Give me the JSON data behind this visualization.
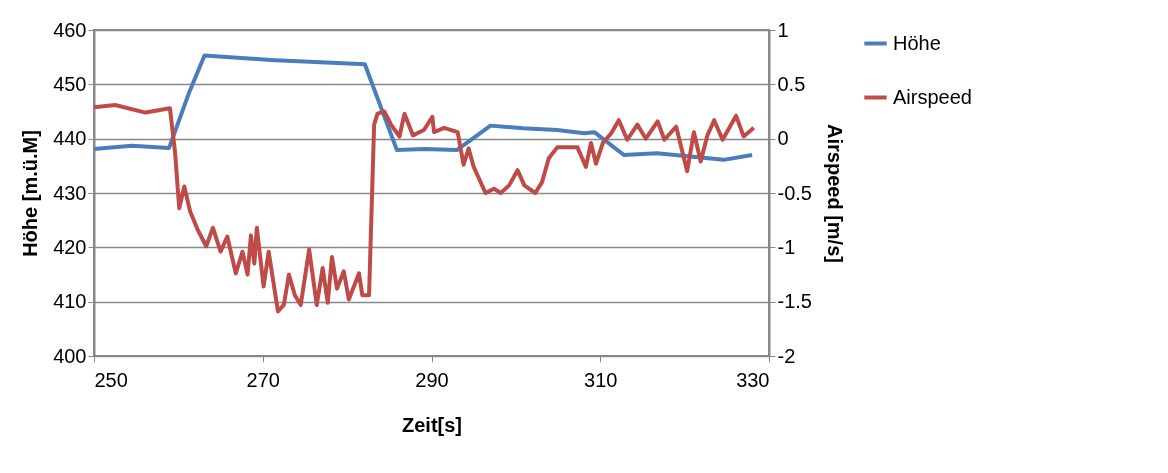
{
  "chart_data": {
    "type": "line",
    "xlabel": "Zeit[s]",
    "ylabel": "Höhe [m.ü.M]",
    "y2label": "Airspeed [m/s]",
    "xlim": [
      250,
      330
    ],
    "xticks": [
      250,
      270,
      290,
      310,
      330
    ],
    "ylim": [
      400,
      460
    ],
    "yticks": [
      400,
      410,
      420,
      430,
      440,
      450,
      460
    ],
    "y2lim": [
      -2,
      1
    ],
    "y2ticks": [
      -2,
      -1.5,
      -1,
      -0.5,
      0,
      0.5,
      1
    ],
    "grid": "y",
    "legend": "right",
    "line_style": "solid",
    "marker": "none",
    "series": [
      {
        "name": "Höhe",
        "color": "#4a7ebb",
        "x": [
          250,
          254.5,
          258.9,
          261.3,
          263.1,
          270.9,
          276.2,
          282.1,
          285.9,
          289.1,
          293.0,
          297.0,
          300.9,
          304.9,
          308.1,
          309.3,
          312.8,
          316.7,
          320.7,
          324.6,
          328.0
        ],
        "values": [
          438.1,
          438.7,
          438.3,
          448.6,
          455.3,
          454.5,
          454.1,
          453.7,
          437.9,
          438.1,
          437.9,
          442.4,
          441.9,
          441.6,
          441.0,
          441.2,
          437.0,
          437.3,
          436.7,
          436.1,
          437.0
        ]
      },
      {
        "name": "Airspeed",
        "color": "#be4b48",
        "axis": "y2",
        "x": [
          250,
          252.5,
          256.1,
          259.0,
          259.6,
          260.1,
          260.7,
          261.4,
          262.3,
          263.3,
          264.1,
          265.0,
          265.8,
          266.8,
          267.6,
          268.2,
          268.6,
          269.0,
          269.3,
          270.1,
          270.7,
          271.8,
          272.5,
          273.1,
          273.8,
          274.5,
          275.5,
          276.4,
          277.1,
          277.7,
          278.2,
          278.8,
          279.6,
          280.2,
          281.4,
          281.8,
          282.6,
          283.2,
          283.6,
          284.4,
          285.2,
          286.2,
          286.8,
          287.8,
          289.1,
          290.1,
          290.3,
          291.5,
          293.1,
          293.8,
          294.4,
          295.0,
          296.4,
          297.4,
          298.2,
          299.2,
          300.2,
          301.0,
          302.3,
          303.1,
          303.9,
          304.9,
          307.3,
          308.3,
          308.9,
          309.5,
          310.3,
          311.3,
          312.2,
          313.2,
          314.4,
          315.4,
          316.8,
          317.6,
          319.0,
          320.3,
          321.1,
          321.9,
          322.7,
          323.5,
          324.5,
          326.1,
          327.0,
          328.2
        ],
        "values": [
          0.29,
          0.31,
          0.24,
          0.28,
          -0.12,
          -0.64,
          -0.44,
          -0.67,
          -0.84,
          -0.99,
          -0.82,
          -1.04,
          -0.9,
          -1.24,
          -1.04,
          -1.25,
          -0.89,
          -1.15,
          -0.82,
          -1.36,
          -1.04,
          -1.59,
          -1.53,
          -1.25,
          -1.44,
          -1.53,
          -1.02,
          -1.53,
          -1.19,
          -1.51,
          -1.09,
          -1.38,
          -1.22,
          -1.48,
          -1.24,
          -1.44,
          -1.44,
          0.13,
          0.23,
          0.25,
          0.13,
          0.02,
          0.23,
          0.03,
          0.08,
          0.2,
          0.06,
          0.1,
          0.06,
          -0.24,
          -0.09,
          -0.26,
          -0.5,
          -0.46,
          -0.5,
          -0.43,
          -0.29,
          -0.43,
          -0.5,
          -0.4,
          -0.18,
          -0.08,
          -0.08,
          -0.26,
          -0.04,
          -0.23,
          -0.04,
          0.05,
          0.17,
          -0.01,
          0.13,
          0.0,
          0.16,
          -0.01,
          0.11,
          -0.3,
          0.06,
          -0.21,
          0.03,
          0.17,
          -0.01,
          0.21,
          0.02,
          0.1
        ]
      }
    ]
  }
}
